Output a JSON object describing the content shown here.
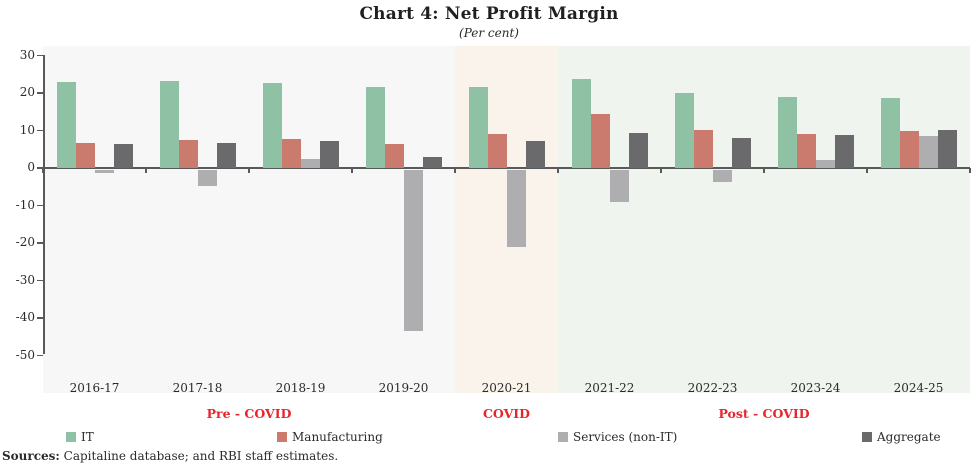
{
  "title": "Chart 4: Net Profit Margin",
  "subtitle": "(Per cent)",
  "chart_data": {
    "type": "bar",
    "categories": [
      "2016-17",
      "2017-18",
      "2018-19",
      "2019-20",
      "2020-21",
      "2021-22",
      "2022-23",
      "2023-24",
      "2024-25"
    ],
    "series": [
      {
        "name": "IT",
        "color": "#8fc1a4",
        "values": [
          23.0,
          23.1,
          22.7,
          21.6,
          21.6,
          23.8,
          20.1,
          18.9,
          18.7
        ]
      },
      {
        "name": "Manufacturing",
        "color": "#cb7a6e",
        "values": [
          6.8,
          7.6,
          7.7,
          6.3,
          9.1,
          14.4,
          10.2,
          9.1,
          10.0
        ]
      },
      {
        "name": "Services (non-IT)",
        "color": "#aeaeb1",
        "values": [
          -0.8,
          -4.5,
          2.5,
          -43.0,
          -20.6,
          -8.7,
          -3.4,
          2.2,
          8.5
        ]
      },
      {
        "name": "Aggregate",
        "color": "#6a6a6c",
        "values": [
          6.5,
          6.8,
          7.3,
          3.0,
          7.3,
          9.4,
          8.0,
          8.8,
          10.2
        ]
      }
    ],
    "ylabel": "",
    "xlabel": "",
    "ylim": [
      -50,
      30
    ],
    "ytick_step": 10,
    "grid": false,
    "legend_position": "bottom",
    "axis_color": "#58595b",
    "periods": [
      {
        "label": "Pre - COVID",
        "from_index": 0,
        "to_index": 3,
        "bg": "#f7f7f7"
      },
      {
        "label": "COVID",
        "from_index": 4,
        "to_index": 4,
        "bg": "#faf3ec"
      },
      {
        "label": "Post - COVID",
        "from_index": 5,
        "to_index": 8,
        "bg": "#eff5ee"
      }
    ],
    "period_label_color": "#e8232a"
  },
  "footer": {
    "sources_label": "Sources:",
    "sources_text": " Capitaline database; and RBI staff estimates."
  }
}
